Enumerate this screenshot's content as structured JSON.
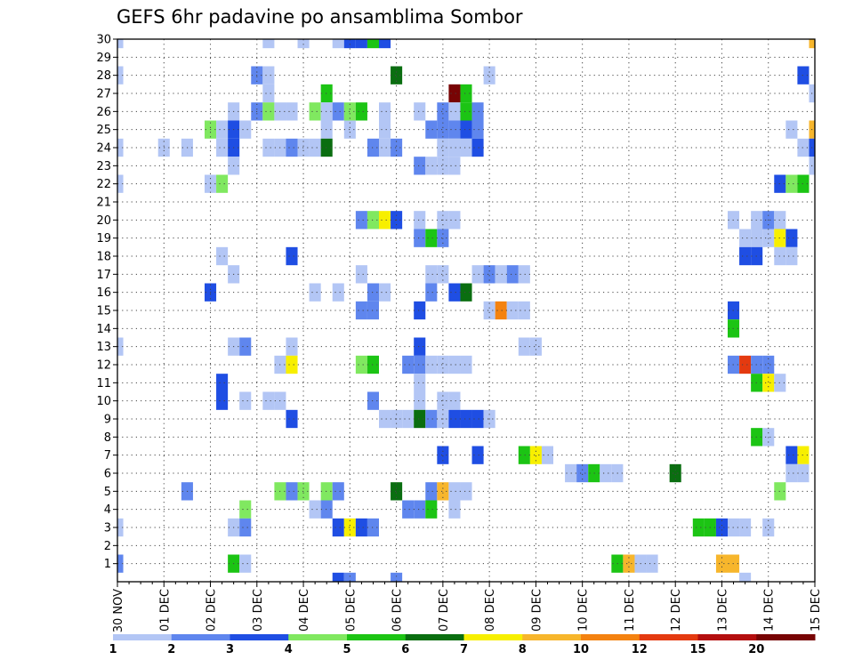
{
  "chart_data": {
    "type": "heatmap",
    "title": "GEFS 6hr padavine po ansamblima Sombor",
    "ylim": [
      0,
      30
    ],
    "yticks": [
      1,
      2,
      3,
      4,
      5,
      6,
      7,
      8,
      9,
      10,
      11,
      12,
      13,
      14,
      15,
      16,
      17,
      18,
      19,
      20,
      21,
      22,
      23,
      24,
      25,
      26,
      27,
      28,
      29,
      30
    ],
    "xtick_labels": [
      "30 NOV",
      "01 DEC",
      "02 DEC",
      "03 DEC",
      "04 DEC",
      "05 DEC",
      "06 DEC",
      "07 DEC",
      "08 DEC",
      "09 DEC",
      "10 DEC",
      "11 DEC",
      "12 DEC",
      "13 DEC",
      "14 DEC",
      "15 DEC"
    ],
    "steps_per_day": 4,
    "n_steps": 61,
    "grid": true,
    "colorbar": {
      "labels": [
        "1",
        "2",
        "3",
        "4",
        "5",
        "6",
        "7",
        "8",
        "10",
        "12",
        "15",
        "20"
      ],
      "colors": [
        "#b3c6f5",
        "#5f86ee",
        "#1f4ee3",
        "#80e860",
        "#1cc414",
        "#0a6e10",
        "#f7ef00",
        "#f7b62c",
        "#f48210",
        "#e43a10",
        "#b40e0e",
        "#780404"
      ]
    },
    "cells": [
      [
        30,
        0,
        0
      ],
      [
        30,
        13,
        0
      ],
      [
        30,
        16,
        0
      ],
      [
        30,
        19,
        0
      ],
      [
        30,
        20,
        2
      ],
      [
        30,
        21,
        2
      ],
      [
        30,
        22,
        4
      ],
      [
        30,
        23,
        2
      ],
      [
        30,
        60,
        7
      ],
      [
        28,
        0,
        0
      ],
      [
        28,
        12,
        1
      ],
      [
        28,
        13,
        0
      ],
      [
        28,
        24,
        5
      ],
      [
        28,
        32,
        0
      ],
      [
        28,
        59,
        2
      ],
      [
        27,
        13,
        0
      ],
      [
        27,
        18,
        4
      ],
      [
        27,
        29,
        11
      ],
      [
        27,
        30,
        4
      ],
      [
        27,
        60,
        0
      ],
      [
        26,
        10,
        0
      ],
      [
        26,
        12,
        1
      ],
      [
        26,
        13,
        3
      ],
      [
        26,
        14,
        0
      ],
      [
        26,
        15,
        0
      ],
      [
        26,
        17,
        3
      ],
      [
        26,
        18,
        0
      ],
      [
        26,
        19,
        1
      ],
      [
        26,
        20,
        3
      ],
      [
        26,
        21,
        4
      ],
      [
        26,
        23,
        0
      ],
      [
        26,
        26,
        0
      ],
      [
        26,
        28,
        1
      ],
      [
        26,
        29,
        0
      ],
      [
        26,
        30,
        4
      ],
      [
        26,
        31,
        1
      ],
      [
        25,
        8,
        3
      ],
      [
        25,
        9,
        0
      ],
      [
        25,
        10,
        2
      ],
      [
        25,
        11,
        0
      ],
      [
        25,
        18,
        0
      ],
      [
        25,
        20,
        0
      ],
      [
        25,
        23,
        0
      ],
      [
        25,
        27,
        1
      ],
      [
        25,
        28,
        1
      ],
      [
        25,
        29,
        1
      ],
      [
        25,
        30,
        2
      ],
      [
        25,
        31,
        1
      ],
      [
        25,
        58,
        0
      ],
      [
        25,
        60,
        7
      ],
      [
        24,
        0,
        0
      ],
      [
        24,
        4,
        0
      ],
      [
        24,
        6,
        0
      ],
      [
        24,
        9,
        0
      ],
      [
        24,
        10,
        2
      ],
      [
        24,
        13,
        0
      ],
      [
        24,
        14,
        0
      ],
      [
        24,
        15,
        1
      ],
      [
        24,
        16,
        0
      ],
      [
        24,
        17,
        0
      ],
      [
        24,
        18,
        5
      ],
      [
        24,
        22,
        1
      ],
      [
        24,
        23,
        0
      ],
      [
        24,
        24,
        1
      ],
      [
        24,
        28,
        0
      ],
      [
        24,
        29,
        0
      ],
      [
        24,
        30,
        0
      ],
      [
        24,
        31,
        2
      ],
      [
        24,
        59,
        0
      ],
      [
        24,
        60,
        2
      ],
      [
        23,
        10,
        0
      ],
      [
        23,
        26,
        1
      ],
      [
        23,
        27,
        0
      ],
      [
        23,
        28,
        0
      ],
      [
        23,
        29,
        0
      ],
      [
        23,
        60,
        0
      ],
      [
        22,
        0,
        0
      ],
      [
        22,
        8,
        0
      ],
      [
        22,
        9,
        3
      ],
      [
        22,
        57,
        2
      ],
      [
        22,
        58,
        3
      ],
      [
        22,
        59,
        4
      ],
      [
        20,
        21,
        1
      ],
      [
        20,
        22,
        3
      ],
      [
        20,
        23,
        6
      ],
      [
        20,
        24,
        2
      ],
      [
        20,
        26,
        0
      ],
      [
        20,
        28,
        0
      ],
      [
        20,
        29,
        0
      ],
      [
        20,
        53,
        0
      ],
      [
        20,
        55,
        0
      ],
      [
        20,
        56,
        1
      ],
      [
        20,
        57,
        0
      ],
      [
        19,
        26,
        1
      ],
      [
        19,
        27,
        4
      ],
      [
        19,
        28,
        1
      ],
      [
        19,
        54,
        0
      ],
      [
        19,
        55,
        0
      ],
      [
        19,
        56,
        0
      ],
      [
        19,
        57,
        6
      ],
      [
        19,
        58,
        2
      ],
      [
        18,
        9,
        0
      ],
      [
        18,
        15,
        2
      ],
      [
        18,
        54,
        2
      ],
      [
        18,
        55,
        2
      ],
      [
        18,
        57,
        0
      ],
      [
        18,
        58,
        0
      ],
      [
        17,
        10,
        0
      ],
      [
        17,
        21,
        0
      ],
      [
        17,
        27,
        0
      ],
      [
        17,
        28,
        0
      ],
      [
        17,
        31,
        0
      ],
      [
        17,
        32,
        1
      ],
      [
        17,
        33,
        0
      ],
      [
        17,
        34,
        1
      ],
      [
        17,
        35,
        0
      ],
      [
        16,
        8,
        2
      ],
      [
        16,
        17,
        0
      ],
      [
        16,
        19,
        0
      ],
      [
        16,
        22,
        1
      ],
      [
        16,
        23,
        0
      ],
      [
        16,
        27,
        1
      ],
      [
        16,
        29,
        2
      ],
      [
        16,
        30,
        5
      ],
      [
        15,
        21,
        1
      ],
      [
        15,
        22,
        1
      ],
      [
        15,
        26,
        2
      ],
      [
        15,
        32,
        0
      ],
      [
        15,
        33,
        8
      ],
      [
        15,
        34,
        0
      ],
      [
        15,
        35,
        0
      ],
      [
        15,
        53,
        2
      ],
      [
        14,
        53,
        4
      ],
      [
        13,
        0,
        0
      ],
      [
        13,
        10,
        0
      ],
      [
        13,
        11,
        1
      ],
      [
        13,
        15,
        0
      ],
      [
        13,
        26,
        2
      ],
      [
        13,
        35,
        0
      ],
      [
        13,
        36,
        0
      ],
      [
        12,
        14,
        0
      ],
      [
        12,
        15,
        6
      ],
      [
        12,
        21,
        3
      ],
      [
        12,
        22,
        4
      ],
      [
        12,
        25,
        1
      ],
      [
        12,
        26,
        1
      ],
      [
        12,
        27,
        0
      ],
      [
        12,
        28,
        0
      ],
      [
        12,
        29,
        0
      ],
      [
        12,
        30,
        0
      ],
      [
        12,
        53,
        1
      ],
      [
        12,
        54,
        9
      ],
      [
        12,
        55,
        1
      ],
      [
        12,
        56,
        1
      ],
      [
        11,
        9,
        2
      ],
      [
        11,
        26,
        0
      ],
      [
        11,
        55,
        4
      ],
      [
        11,
        56,
        6
      ],
      [
        11,
        57,
        0
      ],
      [
        10,
        9,
        2
      ],
      [
        10,
        11,
        0
      ],
      [
        10,
        13,
        0
      ],
      [
        10,
        14,
        0
      ],
      [
        10,
        22,
        1
      ],
      [
        10,
        26,
        0
      ],
      [
        10,
        28,
        0
      ],
      [
        10,
        29,
        0
      ],
      [
        9,
        15,
        2
      ],
      [
        9,
        23,
        0
      ],
      [
        9,
        24,
        0
      ],
      [
        9,
        25,
        0
      ],
      [
        9,
        26,
        5
      ],
      [
        9,
        27,
        1
      ],
      [
        9,
        28,
        0
      ],
      [
        9,
        29,
        2
      ],
      [
        9,
        30,
        2
      ],
      [
        9,
        31,
        2
      ],
      [
        9,
        32,
        0
      ],
      [
        8,
        55,
        4
      ],
      [
        8,
        56,
        0
      ],
      [
        7,
        28,
        2
      ],
      [
        7,
        31,
        2
      ],
      [
        7,
        35,
        4
      ],
      [
        7,
        36,
        6
      ],
      [
        7,
        37,
        0
      ],
      [
        7,
        58,
        2
      ],
      [
        7,
        59,
        6
      ],
      [
        6,
        39,
        0
      ],
      [
        6,
        40,
        1
      ],
      [
        6,
        41,
        4
      ],
      [
        6,
        42,
        0
      ],
      [
        6,
        43,
        0
      ],
      [
        6,
        48,
        5
      ],
      [
        6,
        58,
        0
      ],
      [
        6,
        59,
        0
      ],
      [
        5,
        6,
        1
      ],
      [
        5,
        14,
        3
      ],
      [
        5,
        15,
        1
      ],
      [
        5,
        16,
        3
      ],
      [
        5,
        18,
        3
      ],
      [
        5,
        19,
        1
      ],
      [
        5,
        24,
        5
      ],
      [
        5,
        27,
        1
      ],
      [
        5,
        28,
        7
      ],
      [
        5,
        29,
        0
      ],
      [
        5,
        30,
        0
      ],
      [
        5,
        57,
        3
      ],
      [
        4,
        11,
        3
      ],
      [
        4,
        17,
        0
      ],
      [
        4,
        18,
        1
      ],
      [
        4,
        25,
        1
      ],
      [
        4,
        26,
        1
      ],
      [
        4,
        27,
        4
      ],
      [
        4,
        29,
        0
      ],
      [
        3,
        0,
        0
      ],
      [
        3,
        10,
        0
      ],
      [
        3,
        11,
        1
      ],
      [
        3,
        19,
        2
      ],
      [
        3,
        20,
        6
      ],
      [
        3,
        21,
        2
      ],
      [
        3,
        22,
        1
      ],
      [
        3,
        50,
        4
      ],
      [
        3,
        51,
        4
      ],
      [
        3,
        52,
        2
      ],
      [
        3,
        53,
        0
      ],
      [
        3,
        54,
        0
      ],
      [
        3,
        56,
        0
      ],
      [
        1,
        0,
        1
      ],
      [
        1,
        10,
        4
      ],
      [
        1,
        11,
        0
      ],
      [
        1,
        43,
        4
      ],
      [
        1,
        44,
        7
      ],
      [
        1,
        45,
        0
      ],
      [
        1,
        46,
        0
      ],
      [
        1,
        52,
        7
      ],
      [
        1,
        53,
        7
      ],
      [
        0,
        19,
        2
      ],
      [
        0,
        20,
        1
      ],
      [
        0,
        24,
        1
      ],
      [
        0,
        54,
        0
      ]
    ]
  }
}
